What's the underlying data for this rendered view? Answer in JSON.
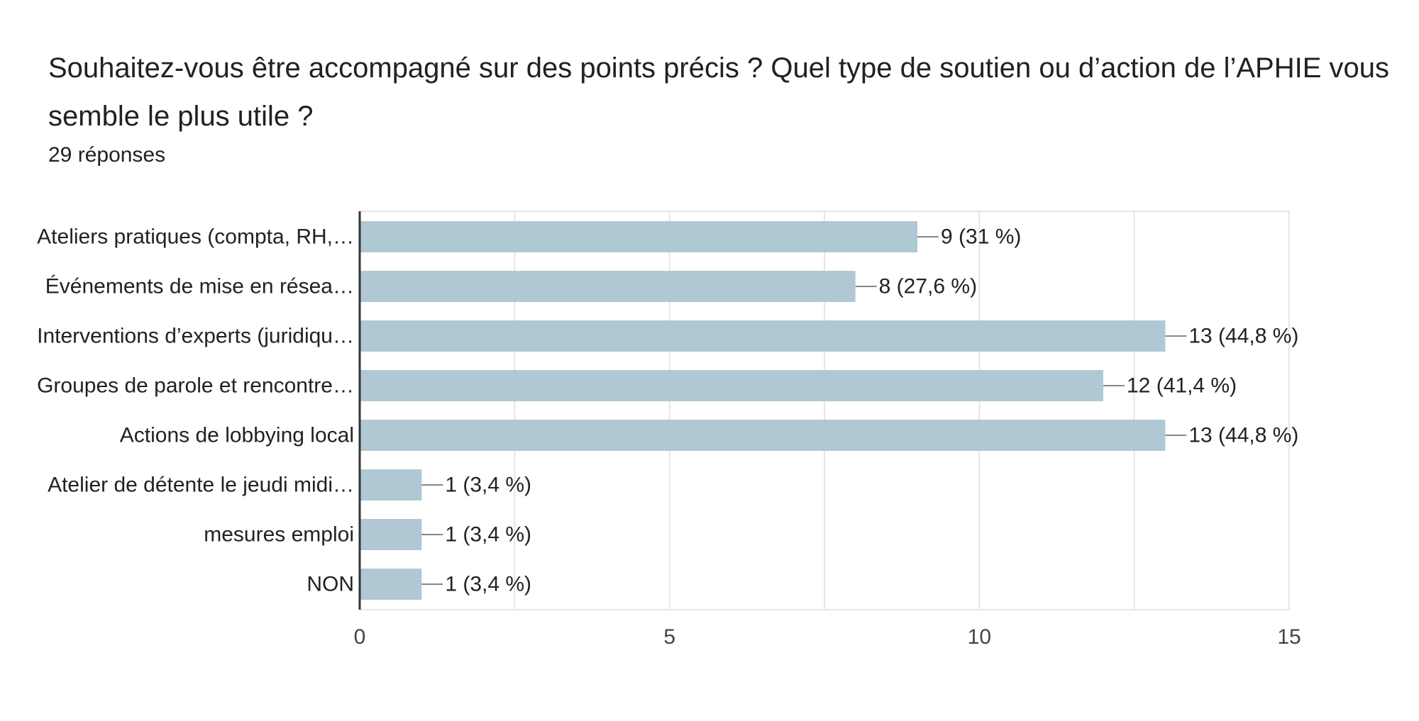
{
  "header": {
    "question": "Souhaitez-vous être accompagné sur des points précis ? Quel type de soutien ou d’action de l’APHIE vous semble le plus utile ?",
    "responses": "29 réponses"
  },
  "colors": {
    "bar": "#b0c8d4",
    "grid": "#e6e6e6",
    "axis": "#333333",
    "leader": "#888888"
  },
  "chart_data": {
    "type": "bar",
    "orientation": "horizontal",
    "categories": [
      "Ateliers pratiques (compta, RH,…",
      "Événements de mise en résea…",
      "Interventions d’experts (juridiqu…",
      "Groupes de parole et rencontre…",
      "Actions de lobbying local",
      "Atelier de détente le jeudi midi…",
      "mesures emploi",
      "NON"
    ],
    "values": [
      9,
      8,
      13,
      12,
      13,
      1,
      1,
      1
    ],
    "data_labels": [
      "9 (31 %)",
      "8 (27,6 %)",
      "13 (44,8 %)",
      "12 (41,4 %)",
      "13 (44,8 %)",
      "1 (3,4 %)",
      "1 (3,4 %)",
      "1 (3,4 %)"
    ],
    "xlim": [
      0,
      15
    ],
    "xticks": [
      0,
      5,
      10,
      15
    ],
    "grid": true,
    "legend": "none"
  }
}
